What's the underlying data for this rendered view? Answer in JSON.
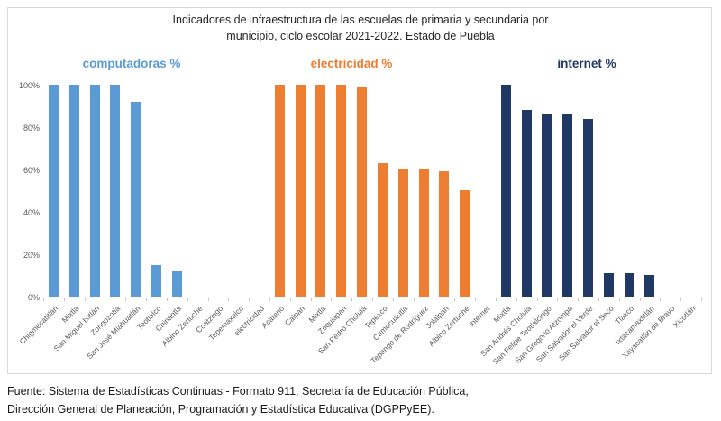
{
  "title": {
    "line1": "Indicadores de infraestructura de las escuelas de primaria y secundaria por",
    "line2": "municipio, ciclo escolar 2021-2022. Estado de Puebla"
  },
  "footer": {
    "line1": "Fuente: Sistema de Estadísticas Continuas - Formato 911, Secretaría de Educación Pública,",
    "line2": "Dirección General de Planeación, Programación y Estadística Educativa (DGPPyEE)."
  },
  "colors": {
    "computadoras": "#5B9BD5",
    "electricidad": "#ED7D31",
    "internet": "#1F3864",
    "axis_text": "#595959",
    "chart_border": "#D9D9D9",
    "axis_line": "#C6C6C6"
  },
  "chart_data": {
    "type": "bar",
    "title": "Indicadores de infraestructura de las escuelas de primaria y secundaria por municipio, ciclo escolar 2021-2022. Estado de Puebla",
    "xlabel": "",
    "ylabel": "",
    "ylim": [
      0,
      100
    ],
    "y_tick_labels": [
      "0%",
      "20%",
      "40%",
      "60%",
      "80%",
      "100%"
    ],
    "grid": false,
    "legend": false,
    "groups": [
      {
        "label": "computadoras %",
        "color": "#5B9BD5",
        "categories": [
          "Chigmecatitlán",
          "Mixtla",
          "San Miguel Ixitlán",
          "Zongozotla",
          "San José Miahuatlán",
          "Teotlalco",
          "Chinantla",
          "Albino Zertuche",
          "Coatzingo",
          "Tepemaxalco"
        ],
        "values": [
          100,
          100,
          100,
          100,
          92,
          15,
          12,
          0,
          0,
          0
        ]
      },
      {
        "label": "electricidad %",
        "color": "#ED7D31",
        "separator_category": "electricidad",
        "categories": [
          "Acateno",
          "Calpan",
          "Mixtla",
          "Zoquiapan",
          "San Pedro Cholula",
          "Tepexco",
          "Camocuautla",
          "Tepango de Rodríguez",
          "Jolalpan",
          "Albino Zertuche"
        ],
        "values": [
          100,
          100,
          100,
          100,
          99,
          63,
          60,
          60,
          59,
          50
        ]
      },
      {
        "label": "internet %",
        "color": "#1F3864",
        "separator_category": "internet",
        "categories": [
          "Mixtla",
          "San Andrés Cholula",
          "San Felipe Teotlalcingo",
          "San Gregorio Atzompa",
          "San Salvador el Verde",
          "San Salvador el Seco",
          "Tlaxco",
          "Ixtacamaxtitlán",
          "Xayacatlán de Bravo",
          "Xicotlán"
        ],
        "values": [
          100,
          88,
          86,
          86,
          84,
          11,
          11,
          10,
          0,
          0
        ]
      }
    ]
  }
}
